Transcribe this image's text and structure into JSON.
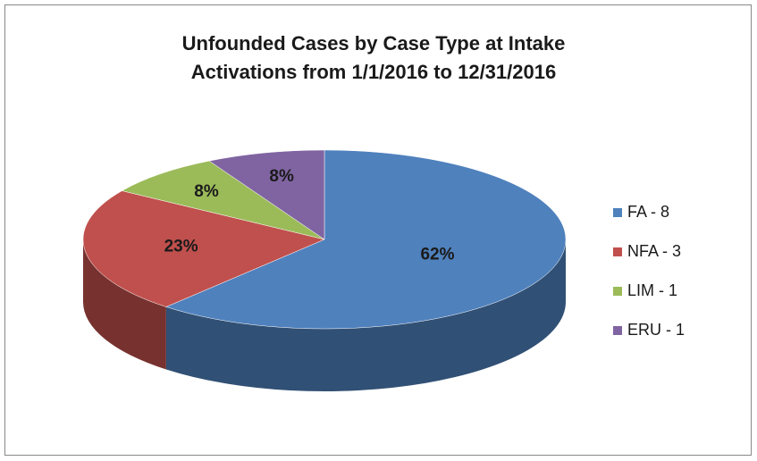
{
  "chart_data": {
    "type": "pie",
    "title": "Unfounded Cases by Case Type at Intake",
    "subtitle": "Activations from 1/1/2016 to 12/31/2016",
    "categories": [
      "FA - 8",
      "NFA - 3",
      "LIM - 1",
      "ERU - 1"
    ],
    "values": [
      62,
      23,
      8,
      8
    ],
    "value_labels": [
      "62%",
      "23%",
      "8%",
      "8%"
    ],
    "colors": [
      "#4f81bd",
      "#c0504d",
      "#9bbb59",
      "#8064a2"
    ],
    "legend": "right"
  }
}
